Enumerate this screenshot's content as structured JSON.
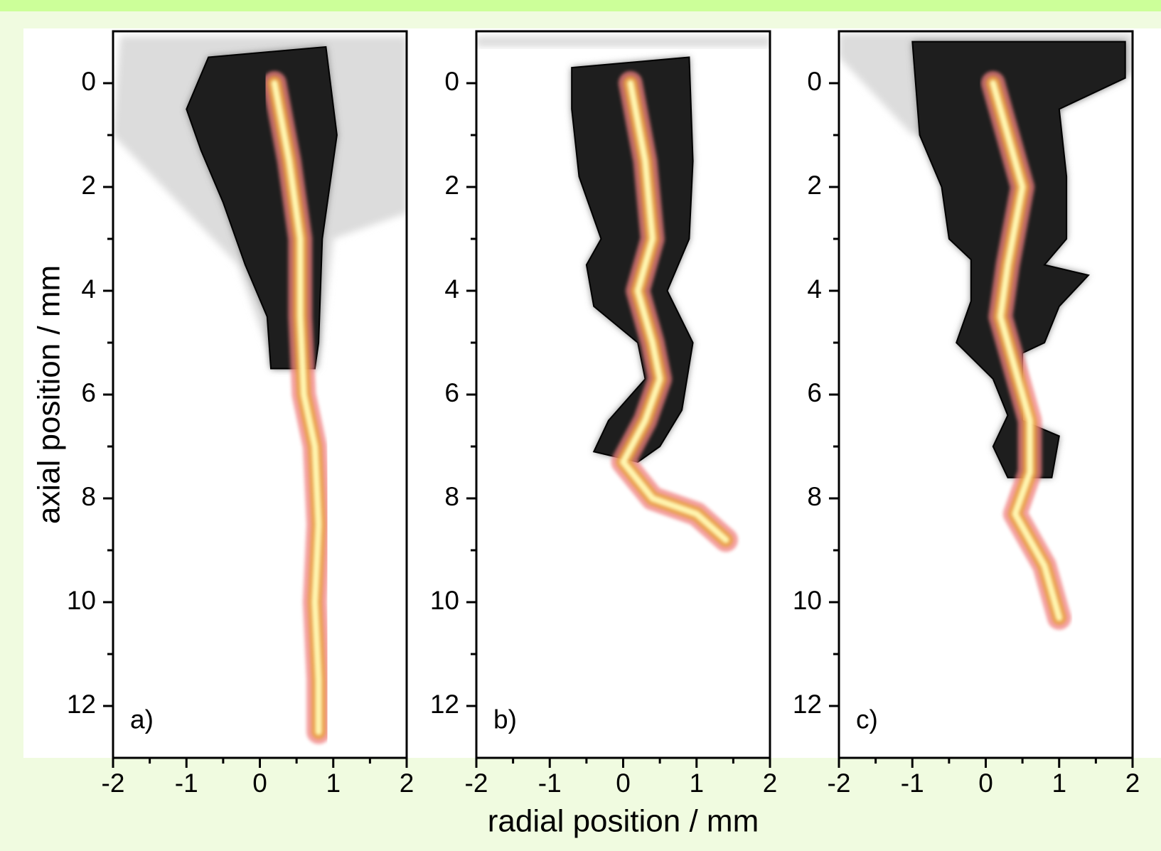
{
  "chart_data": [
    {
      "type": "image",
      "panel_label": "a)",
      "ylabel": "axial position / mm",
      "xlim": [
        -2,
        2
      ],
      "xticks": [
        -2,
        -1,
        0,
        1,
        2
      ],
      "xminorticks": [
        -1.5,
        -0.5,
        0.5,
        1.5
      ],
      "ylim": [
        -1,
        13
      ],
      "yticks": [
        0,
        2,
        4,
        6,
        8,
        10,
        12
      ],
      "yminorticks": [
        1,
        3,
        5,
        7,
        9,
        11
      ],
      "y_inverted": true
    },
    {
      "type": "image",
      "panel_label": "b)",
      "xlabel": "radial position / mm",
      "xlim": [
        -2,
        2
      ],
      "xticks": [
        -2,
        -1,
        0,
        1,
        2
      ],
      "xminorticks": [
        -1.5,
        -0.5,
        0.5,
        1.5
      ],
      "ylim": [
        -1,
        13
      ],
      "yticks": [
        0,
        2,
        4,
        6,
        8,
        10,
        12
      ],
      "yminorticks": [
        1,
        3,
        5,
        7,
        9,
        11
      ],
      "y_inverted": true
    },
    {
      "type": "image",
      "panel_label": "c)",
      "xlim": [
        -2,
        2
      ],
      "xticks": [
        -2,
        -1,
        0,
        1,
        2
      ],
      "xminorticks": [
        -1.5,
        -0.5,
        0.5,
        1.5
      ],
      "ylim": [
        -1,
        13
      ],
      "yticks": [
        0,
        2,
        4,
        6,
        8,
        10,
        12
      ],
      "yminorticks": [
        1,
        3,
        5,
        7,
        9,
        11
      ],
      "y_inverted": true
    }
  ]
}
